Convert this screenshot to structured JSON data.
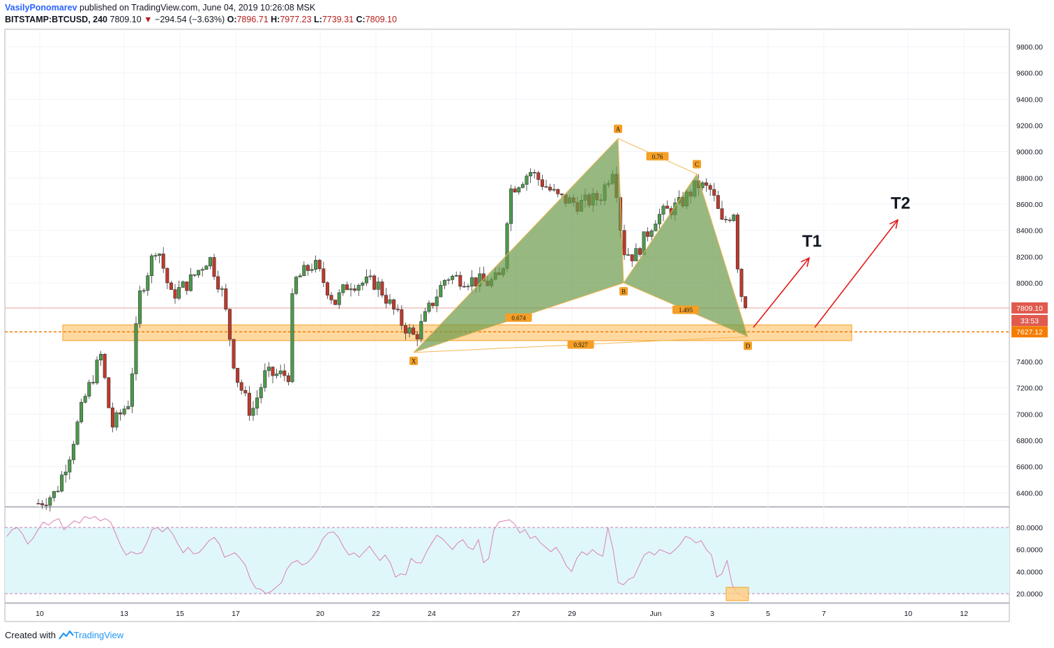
{
  "header": {
    "author": "VasilyPonomarev",
    "published_text": "published on TradingView.com, June 04, 2019 10:26:08 MSK",
    "symbol": "BITSTAMP:BTCUSD, 240",
    "last": "7809.10",
    "change": "−294.54 (−3.63%)",
    "open_label": "O:",
    "open": "7896.71",
    "high_label": "H:",
    "high": "7977.23",
    "low_label": "L:",
    "low": "7739.31",
    "close_label": "C:",
    "close": "7809.10"
  },
  "footer": {
    "created_with": "Created with",
    "brand": "TradingView"
  },
  "colors": {
    "up": "#4c9a4c",
    "down": "#c0392b",
    "pattern_fill": "#6b9a4a",
    "pattern_line": "#f5b754",
    "zone_fill": "#ffcc80",
    "zone_border": "#f59f25",
    "target_arrow": "#e31b1b",
    "rsi_line": "#d97fb6",
    "rsi_band": "#e0f7fa"
  },
  "chart_data": [
    {
      "type": "candlestick",
      "ylim": [
        6300,
        9900
      ],
      "price_ticks": [
        "9800.00",
        "9600.00",
        "9400.00",
        "9200.00",
        "9000.00",
        "8800.00",
        "8600.00",
        "8400.00",
        "8200.00",
        "8000.00",
        "7400.00",
        "7200.00",
        "7000.00",
        "6800.00",
        "6600.00",
        "6400.00"
      ],
      "x_ticks": [
        "10",
        "13",
        "15",
        "17",
        "20",
        "22",
        "24",
        "27",
        "29",
        "Jun",
        "3",
        "5",
        "7",
        "10",
        "12"
      ],
      "price_badges": {
        "last": "7809.10",
        "countdown": "33:53",
        "level": "7627.12"
      },
      "horizontal_level": 7627.12,
      "support_zone": {
        "low": 7560,
        "high": 7680
      },
      "harmonic_pattern": {
        "points": [
          {
            "label": "X",
            "price": 7470
          },
          {
            "label": "A",
            "price": 9100
          },
          {
            "label": "B",
            "price": 8000
          },
          {
            "label": "C",
            "price": 8830
          },
          {
            "label": "D",
            "price": 7590
          }
        ],
        "ratios": [
          {
            "label": "0.76",
            "between": "A-C"
          },
          {
            "label": "0.674",
            "between": "X-B"
          },
          {
            "label": "1.495",
            "between": "B-D"
          },
          {
            "label": "0.927",
            "between": "X-D"
          }
        ]
      },
      "targets": [
        {
          "label": "T1",
          "price": 8190
        },
        {
          "label": "T2",
          "price": 8480
        }
      ]
    },
    {
      "type": "line",
      "name": "",
      "ylim": [
        10,
        100
      ],
      "y_ticks": [
        "80.0000",
        "60.0000",
        "40.0000",
        "20.0000"
      ],
      "band": [
        20,
        80
      ],
      "values": [
        72,
        78,
        80,
        74,
        65,
        70,
        78,
        85,
        82,
        86,
        88,
        78,
        82,
        86,
        84,
        90,
        88,
        90,
        86,
        88,
        85,
        74,
        63,
        55,
        58,
        56,
        57,
        66,
        78,
        80,
        76,
        80,
        74,
        65,
        57,
        62,
        56,
        57,
        62,
        68,
        71,
        65,
        53,
        55,
        57,
        52,
        46,
        33,
        25,
        24,
        20,
        22,
        26,
        30,
        42,
        48,
        50,
        46,
        48,
        53,
        60,
        70,
        75,
        76,
        71,
        62,
        55,
        57,
        53,
        58,
        63,
        56,
        50,
        55,
        48,
        35,
        38,
        37,
        52,
        48,
        48,
        58,
        66,
        73,
        70,
        65,
        60,
        66,
        69,
        62,
        60,
        69,
        48,
        52,
        78,
        85,
        86,
        87,
        83,
        75,
        78,
        70,
        72,
        66,
        62,
        58,
        62,
        55,
        45,
        40,
        52,
        58,
        55,
        60,
        56,
        54,
        80,
        60,
        30,
        28,
        33,
        35,
        45,
        55,
        58,
        55,
        60,
        58,
        56,
        60,
        65,
        72,
        70,
        66,
        68,
        60,
        55,
        35,
        38,
        50,
        28,
        20,
        18,
        16
      ]
    }
  ]
}
